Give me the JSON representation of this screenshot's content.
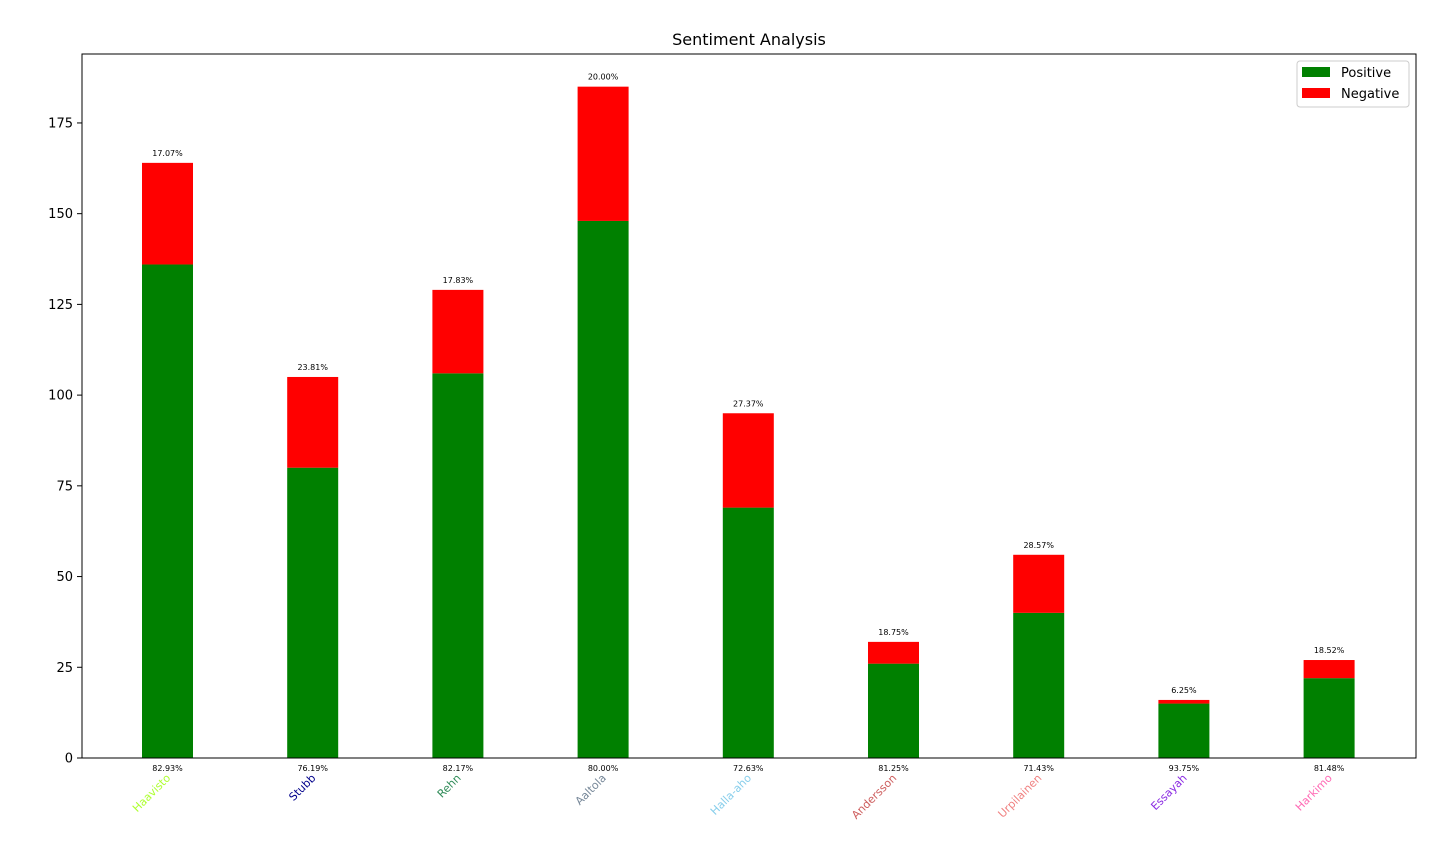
{
  "chart_data": {
    "type": "bar",
    "stacked": true,
    "title": "Sentiment Analysis",
    "xlabel": "",
    "ylabel": "",
    "ylim": [
      0,
      194
    ],
    "yticks": [
      0,
      25,
      50,
      75,
      100,
      125,
      150,
      175
    ],
    "grid": false,
    "legend_position": "top-right",
    "categories": [
      "Haavisto",
      "Stubb",
      "Rehn",
      "Aaltola",
      "Halla-aho",
      "Andersson",
      "Urpilainen",
      "Essayah",
      "Harkimo"
    ],
    "category_colors": [
      "#adff2f",
      "#00008b",
      "#2e8b57",
      "#778899",
      "#87ceeb",
      "#cd5c5c",
      "#f08080",
      "#8a2be2",
      "#ff69b4"
    ],
    "series": [
      {
        "name": "Positive",
        "color": "#008000",
        "values": [
          136,
          80,
          106,
          148,
          69,
          26,
          40,
          15,
          22
        ],
        "labels": [
          "82.93%",
          "76.19%",
          "82.17%",
          "80.00%",
          "72.63%",
          "81.25%",
          "71.43%",
          "93.75%",
          "81.48%"
        ]
      },
      {
        "name": "Negative",
        "color": "#ff0000",
        "values": [
          28,
          25,
          23,
          37,
          26,
          6,
          16,
          1,
          5
        ],
        "labels": [
          "17.07%",
          "23.81%",
          "17.83%",
          "20.00%",
          "27.37%",
          "18.75%",
          "28.57%",
          "6.25%",
          "18.52%"
        ]
      }
    ]
  }
}
